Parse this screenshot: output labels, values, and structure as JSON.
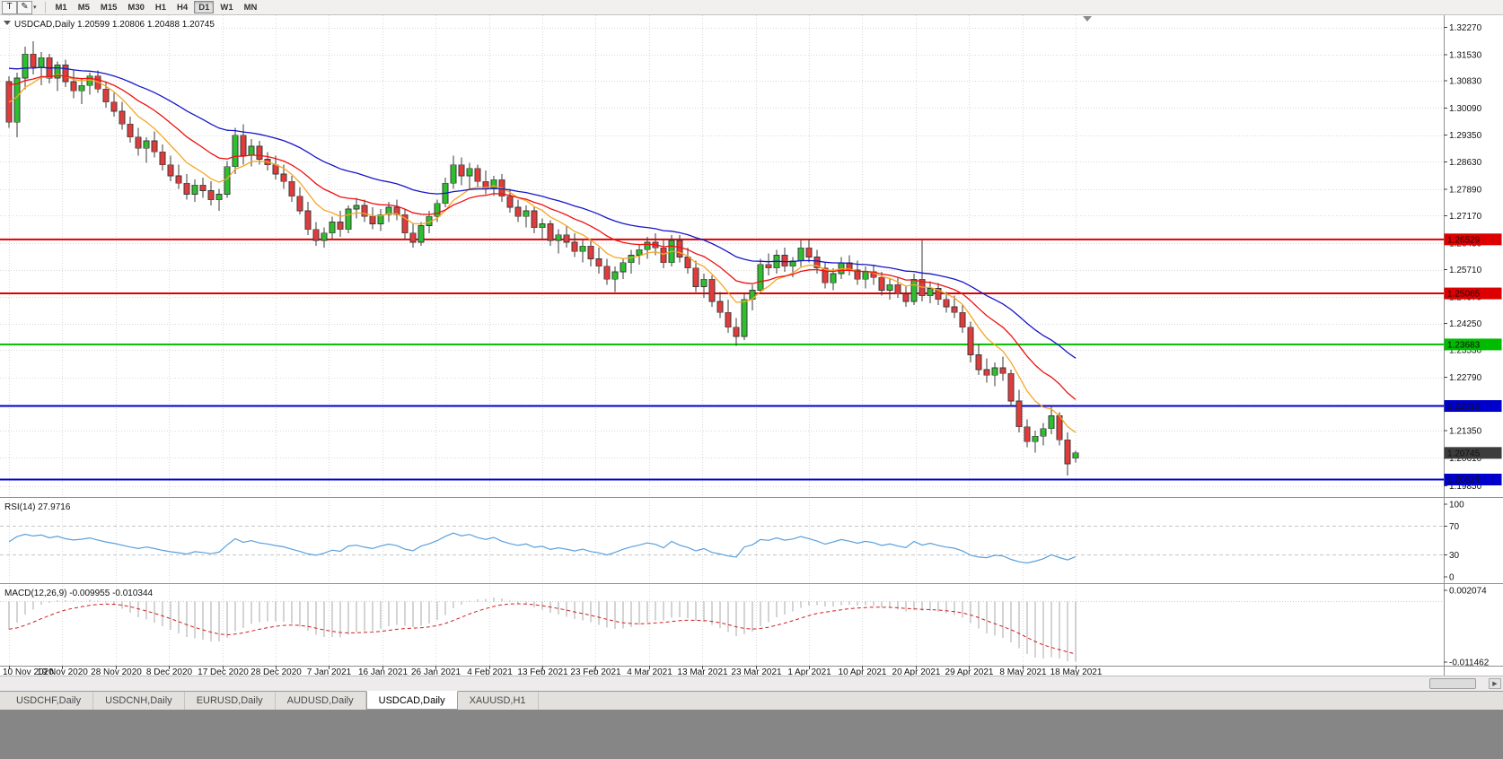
{
  "toolbar": {
    "text_tool_label": "T",
    "draw_tool_icon": "✎",
    "dropdown_caret": "▾",
    "timeframes": [
      "M1",
      "M5",
      "M15",
      "M30",
      "H1",
      "H4",
      "D1",
      "W1",
      "MN"
    ],
    "active_timeframe": "D1"
  },
  "tabs": {
    "items": [
      {
        "label": "USDCHF,Daily",
        "active": false
      },
      {
        "label": "USDCNH,Daily",
        "active": false
      },
      {
        "label": "EURUSD,Daily",
        "active": false
      },
      {
        "label": "AUDUSD,Daily",
        "active": false
      },
      {
        "label": "USDCAD,Daily",
        "active": true
      },
      {
        "label": "XAUUSD,H1",
        "active": false
      }
    ]
  },
  "chart_data": {
    "type": "candlestick",
    "title": "USDCAD,Daily 1.20599 1.20806 1.20488 1.20745",
    "symbol": "USDCAD",
    "timeframe": "Daily",
    "ohlc_display": {
      "open": "1.20599",
      "high": "1.20806",
      "low": "1.20488",
      "close": "1.20745"
    },
    "collapse_arrow": "▼",
    "price_axis": {
      "ylim": [
        1.1955,
        1.326
      ],
      "ticks": [
        "1.32270",
        "1.31530",
        "1.30830",
        "1.30090",
        "1.29350",
        "1.28630",
        "1.27890",
        "1.27170",
        "1.26430",
        "1.25710",
        "1.24970",
        "1.24250",
        "1.23530",
        "1.22790",
        "1.22050",
        "1.21350",
        "1.20610",
        "1.19850"
      ]
    },
    "x_ticks": [
      "10 Nov 2020",
      "19 Nov 2020",
      "28 Nov 2020",
      "8 Dec 2020",
      "17 Dec 2020",
      "28 Dec 2020",
      "7 Jan 2021",
      "16 Jan 2021",
      "26 Jan 2021",
      "4 Feb 2021",
      "13 Feb 2021",
      "23 Feb 2021",
      "4 Mar 2021",
      "13 Mar 2021",
      "23 Mar 2021",
      "1 Apr 2021",
      "10 Apr 2021",
      "20 Apr 2021",
      "29 Apr 2021",
      "8 May 2021",
      "18 May 2021"
    ],
    "colors": {
      "bull": "#2ebf2e",
      "bear": "#e23b3b",
      "wick": "#3a3a3a",
      "grid": "#d9d9d9"
    },
    "moving_averages": [
      {
        "period": 8,
        "method": "ema",
        "seed": 1.304,
        "color": "#f5a623"
      },
      {
        "period": 17,
        "method": "ema",
        "seed": 1.3085,
        "color": "#ee1111"
      },
      {
        "period": 34,
        "method": "ema",
        "seed": 1.3125,
        "color": "#1515c8"
      }
    ],
    "hlines": [
      {
        "price": 1.26529,
        "label": "1.26529",
        "color": "#dd0000"
      },
      {
        "price": 1.25065,
        "label": "1.25065",
        "color": "#dd0000"
      },
      {
        "price": 1.23683,
        "label": "1.23683",
        "color": "#00bb00"
      },
      {
        "price": 1.22016,
        "label": "1.22016",
        "color": "#0000cc"
      },
      {
        "price": 1.20024,
        "label": "1.20024",
        "color": "#0000cc"
      }
    ],
    "current_price": {
      "value": 1.20745,
      "label": "1.20745",
      "bg": "#3c3c3c"
    },
    "rsi": {
      "label": "RSI(14) 27.9716",
      "value": 27.9716,
      "period": 14,
      "seed_gain": 0.0028,
      "seed_loss": 0.003,
      "levels": [
        70,
        30
      ],
      "ticks": [
        {
          "v": 100,
          "t": "100"
        },
        {
          "v": 70,
          "t": "70"
        },
        {
          "v": 30,
          "t": "30"
        },
        {
          "v": 0,
          "t": "0"
        }
      ],
      "color": "#5aa0dc"
    },
    "macd": {
      "label": "MACD(12,26,9) -0.009955 -0.010344",
      "main_value": -0.009955,
      "signal_value": -0.010344,
      "fast": 12,
      "slow": 26,
      "signal": 9,
      "seed_fast": 1.299,
      "seed_slow": 1.3045,
      "ylim": [
        -0.011462,
        0.002074
      ],
      "ticks": [
        {
          "v": 0.002074,
          "t": "0.002074"
        },
        {
          "v": -0.011462,
          "t": "-0.011462"
        }
      ],
      "bar_color": "#a8a8a8",
      "signal_color": "#d02020"
    },
    "candles": [
      [
        1.308,
        1.3095,
        1.2955,
        1.297
      ],
      [
        1.297,
        1.3105,
        1.293,
        1.309
      ],
      [
        1.309,
        1.3175,
        1.306,
        1.3155
      ],
      [
        1.3155,
        1.319,
        1.31,
        1.312
      ],
      [
        1.312,
        1.316,
        1.307,
        1.3145
      ],
      [
        1.3145,
        1.3155,
        1.3075,
        1.309
      ],
      [
        1.309,
        1.3135,
        1.3055,
        1.3125
      ],
      [
        1.3125,
        1.314,
        1.3065,
        1.308
      ],
      [
        1.308,
        1.311,
        1.3035,
        1.3055
      ],
      [
        1.3055,
        1.309,
        1.302,
        1.307
      ],
      [
        1.307,
        1.3105,
        1.3045,
        1.3095
      ],
      [
        1.3095,
        1.311,
        1.305,
        1.306
      ],
      [
        1.306,
        1.308,
        1.301,
        1.3025
      ],
      [
        1.3025,
        1.305,
        1.2985,
        1.3
      ],
      [
        1.3,
        1.3025,
        1.295,
        1.2965
      ],
      [
        1.2965,
        1.2985,
        1.2915,
        1.293
      ],
      [
        1.293,
        1.2955,
        1.288,
        1.29
      ],
      [
        1.29,
        1.293,
        1.286,
        1.292
      ],
      [
        1.292,
        1.2945,
        1.2875,
        1.289
      ],
      [
        1.289,
        1.291,
        1.284,
        1.2855
      ],
      [
        1.2855,
        1.288,
        1.281,
        1.2825
      ],
      [
        1.2825,
        1.2855,
        1.279,
        1.2805
      ],
      [
        1.2805,
        1.283,
        1.276,
        1.2775
      ],
      [
        1.2775,
        1.2815,
        1.2755,
        1.28
      ],
      [
        1.28,
        1.282,
        1.2765,
        1.2785
      ],
      [
        1.2785,
        1.281,
        1.2745,
        1.276
      ],
      [
        1.276,
        1.279,
        1.273,
        1.2775
      ],
      [
        1.2775,
        1.2865,
        1.2765,
        1.285
      ],
      [
        1.285,
        1.2955,
        1.283,
        1.2935
      ],
      [
        1.2935,
        1.2965,
        1.2855,
        1.288
      ],
      [
        1.288,
        1.2925,
        1.285,
        1.2905
      ],
      [
        1.2905,
        1.292,
        1.2855,
        1.287
      ],
      [
        1.287,
        1.289,
        1.284,
        1.2855
      ],
      [
        1.2855,
        1.288,
        1.2815,
        1.283
      ],
      [
        1.283,
        1.2855,
        1.279,
        1.281
      ],
      [
        1.281,
        1.2825,
        1.2755,
        1.277
      ],
      [
        1.277,
        1.2795,
        1.272,
        1.273
      ],
      [
        1.273,
        1.2755,
        1.2665,
        1.268
      ],
      [
        1.268,
        1.27,
        1.2635,
        1.265
      ],
      [
        1.265,
        1.2685,
        1.263,
        1.267
      ],
      [
        1.267,
        1.2715,
        1.2655,
        1.27
      ],
      [
        1.27,
        1.273,
        1.266,
        1.268
      ],
      [
        1.268,
        1.2745,
        1.267,
        1.2735
      ],
      [
        1.2735,
        1.2765,
        1.271,
        1.2745
      ],
      [
        1.2745,
        1.276,
        1.27,
        1.2715
      ],
      [
        1.2715,
        1.274,
        1.268,
        1.2695
      ],
      [
        1.2695,
        1.2735,
        1.2675,
        1.272
      ],
      [
        1.272,
        1.2755,
        1.27,
        1.274
      ],
      [
        1.274,
        1.276,
        1.2705,
        1.272
      ],
      [
        1.272,
        1.2735,
        1.2655,
        1.267
      ],
      [
        1.267,
        1.2695,
        1.263,
        1.2645
      ],
      [
        1.2645,
        1.27,
        1.2635,
        1.269
      ],
      [
        1.269,
        1.273,
        1.267,
        1.2715
      ],
      [
        1.2715,
        1.276,
        1.27,
        1.275
      ],
      [
        1.275,
        1.282,
        1.274,
        1.2805
      ],
      [
        1.2805,
        1.288,
        1.279,
        1.2855
      ],
      [
        1.2855,
        1.2875,
        1.28,
        1.2825
      ],
      [
        1.2825,
        1.286,
        1.279,
        1.2845
      ],
      [
        1.2845,
        1.2855,
        1.2795,
        1.281
      ],
      [
        1.281,
        1.284,
        1.2775,
        1.279
      ],
      [
        1.279,
        1.2825,
        1.277,
        1.2815
      ],
      [
        1.2815,
        1.283,
        1.2755,
        1.277
      ],
      [
        1.277,
        1.279,
        1.2725,
        1.274
      ],
      [
        1.274,
        1.276,
        1.27,
        1.2715
      ],
      [
        1.2715,
        1.2745,
        1.2685,
        1.273
      ],
      [
        1.273,
        1.274,
        1.267,
        1.2685
      ],
      [
        1.2685,
        1.271,
        1.2655,
        1.2695
      ],
      [
        1.2695,
        1.2705,
        1.2635,
        1.265
      ],
      [
        1.265,
        1.268,
        1.2615,
        1.2665
      ],
      [
        1.2665,
        1.269,
        1.263,
        1.2645
      ],
      [
        1.2645,
        1.267,
        1.2605,
        1.262
      ],
      [
        1.262,
        1.265,
        1.259,
        1.2635
      ],
      [
        1.2635,
        1.2655,
        1.258,
        1.26
      ],
      [
        1.26,
        1.263,
        1.256,
        1.258
      ],
      [
        1.258,
        1.26,
        1.253,
        1.2545
      ],
      [
        1.2545,
        1.258,
        1.251,
        1.2565
      ],
      [
        1.2565,
        1.26,
        1.2545,
        1.259
      ],
      [
        1.259,
        1.2625,
        1.256,
        1.261
      ],
      [
        1.261,
        1.264,
        1.2585,
        1.2625
      ],
      [
        1.2625,
        1.266,
        1.26,
        1.2645
      ],
      [
        1.2645,
        1.267,
        1.261,
        1.263
      ],
      [
        1.263,
        1.2655,
        1.2575,
        1.259
      ],
      [
        1.259,
        1.2665,
        1.258,
        1.265
      ],
      [
        1.265,
        1.2665,
        1.259,
        1.2605
      ],
      [
        1.2605,
        1.263,
        1.256,
        1.2575
      ],
      [
        1.2575,
        1.2595,
        1.251,
        1.2525
      ],
      [
        1.2525,
        1.256,
        1.2495,
        1.2545
      ],
      [
        1.2545,
        1.2555,
        1.247,
        1.2485
      ],
      [
        1.2485,
        1.251,
        1.244,
        1.2455
      ],
      [
        1.2455,
        1.249,
        1.24,
        1.2415
      ],
      [
        1.2415,
        1.244,
        1.2365,
        1.239
      ],
      [
        1.239,
        1.2505,
        1.238,
        1.249
      ],
      [
        1.249,
        1.253,
        1.246,
        1.2515
      ],
      [
        1.2515,
        1.26,
        1.2505,
        1.2585
      ],
      [
        1.2585,
        1.2615,
        1.2555,
        1.2575
      ],
      [
        1.2575,
        1.2625,
        1.256,
        1.261
      ],
      [
        1.261,
        1.263,
        1.2565,
        1.258
      ],
      [
        1.258,
        1.2605,
        1.255,
        1.2595
      ],
      [
        1.2595,
        1.265,
        1.258,
        1.263
      ],
      [
        1.263,
        1.2655,
        1.259,
        1.2605
      ],
      [
        1.2605,
        1.2625,
        1.256,
        1.2575
      ],
      [
        1.2575,
        1.259,
        1.252,
        1.2535
      ],
      [
        1.2535,
        1.2575,
        1.2515,
        1.256
      ],
      [
        1.256,
        1.2605,
        1.2545,
        1.259
      ],
      [
        1.259,
        1.261,
        1.2555,
        1.257
      ],
      [
        1.257,
        1.2595,
        1.253,
        1.2545
      ],
      [
        1.2545,
        1.258,
        1.252,
        1.2565
      ],
      [
        1.2565,
        1.2585,
        1.253,
        1.255
      ],
      [
        1.255,
        1.2565,
        1.25,
        1.2515
      ],
      [
        1.2515,
        1.2545,
        1.249,
        1.253
      ],
      [
        1.253,
        1.255,
        1.2495,
        1.2505
      ],
      [
        1.2505,
        1.2525,
        1.247,
        1.2485
      ],
      [
        1.2485,
        1.256,
        1.2475,
        1.2545
      ],
      [
        1.2545,
        1.265,
        1.2485,
        1.25
      ],
      [
        1.25,
        1.254,
        1.248,
        1.252
      ],
      [
        1.252,
        1.2535,
        1.2475,
        1.249
      ],
      [
        1.249,
        1.251,
        1.2455,
        1.247
      ],
      [
        1.247,
        1.25,
        1.244,
        1.2455
      ],
      [
        1.2455,
        1.2475,
        1.24,
        1.2415
      ],
      [
        1.2415,
        1.243,
        1.232,
        1.234
      ],
      [
        1.234,
        1.237,
        1.2285,
        1.23
      ],
      [
        1.23,
        1.233,
        1.2265,
        1.2285
      ],
      [
        1.2285,
        1.232,
        1.2255,
        1.2305
      ],
      [
        1.2305,
        1.2335,
        1.227,
        1.229
      ],
      [
        1.229,
        1.23,
        1.22,
        1.2215
      ],
      [
        1.2215,
        1.2245,
        1.213,
        1.2145
      ],
      [
        1.2145,
        1.2165,
        1.209,
        1.2105
      ],
      [
        1.2105,
        1.2135,
        1.2075,
        1.212
      ],
      [
        1.212,
        1.2155,
        1.2095,
        1.214
      ],
      [
        1.214,
        1.22,
        1.2125,
        1.2175
      ],
      [
        1.2175,
        1.2185,
        1.2095,
        1.211
      ],
      [
        1.211,
        1.213,
        1.2013,
        1.2045
      ],
      [
        1.20599,
        1.20806,
        1.20488,
        1.20745
      ]
    ]
  }
}
